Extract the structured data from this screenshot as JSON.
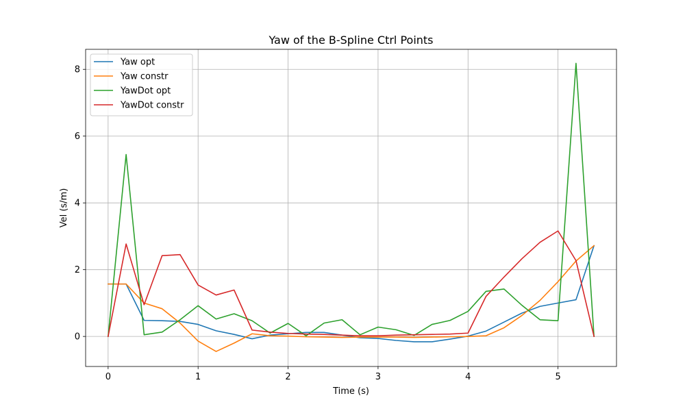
{
  "chart_data": {
    "type": "line",
    "title": "Yaw of the B-Spline Ctrl Points",
    "xlabel": "Time (s)",
    "ylabel": "Vel (s/m)",
    "xlim": [
      -0.25,
      5.65
    ],
    "ylim": [
      -0.9,
      8.6
    ],
    "xticks": [
      0,
      1,
      2,
      3,
      4,
      5
    ],
    "yticks": [
      0,
      2,
      4,
      6,
      8
    ],
    "grid": true,
    "legend_position": "top-left",
    "x": [
      0,
      0.2,
      0.4,
      0.6,
      0.8,
      1.0,
      1.2,
      1.4,
      1.6,
      1.8,
      2.0,
      2.2,
      2.4,
      2.6,
      2.8,
      3.0,
      3.2,
      3.4,
      3.6,
      3.8,
      4.0,
      4.2,
      4.4,
      4.6,
      4.8,
      5.0,
      5.2,
      5.4
    ],
    "series": [
      {
        "name": "Yaw opt",
        "color": "#1f77b4",
        "values": [
          1.57,
          1.57,
          0.48,
          0.47,
          0.45,
          0.36,
          0.17,
          0.06,
          -0.07,
          0.04,
          0.08,
          0.12,
          0.12,
          0.04,
          -0.04,
          -0.06,
          -0.12,
          -0.16,
          -0.16,
          -0.08,
          0.01,
          0.16,
          0.43,
          0.7,
          0.9,
          1.0,
          1.1,
          2.72
        ]
      },
      {
        "name": "Yaw constr",
        "color": "#ff7f0e",
        "values": [
          1.57,
          1.57,
          1.0,
          0.83,
          0.4,
          -0.14,
          -0.45,
          -0.2,
          0.08,
          0.02,
          0.01,
          -0.01,
          -0.02,
          -0.03,
          -0.02,
          -0.02,
          -0.02,
          -0.03,
          -0.02,
          -0.01,
          0.0,
          0.02,
          0.26,
          0.63,
          1.08,
          1.64,
          2.26,
          2.72
        ]
      },
      {
        "name": "YawDot opt",
        "color": "#2ca02c",
        "values": [
          0.0,
          5.45,
          0.05,
          0.13,
          0.5,
          0.92,
          0.52,
          0.68,
          0.47,
          0.1,
          0.39,
          0.02,
          0.4,
          0.5,
          0.05,
          0.28,
          0.2,
          0.03,
          0.36,
          0.48,
          0.75,
          1.35,
          1.42,
          0.93,
          0.5,
          0.47,
          8.18,
          0.0
        ]
      },
      {
        "name": "YawDot constr",
        "color": "#d62728",
        "values": [
          0.0,
          2.77,
          0.95,
          2.42,
          2.45,
          1.54,
          1.24,
          1.39,
          0.19,
          0.13,
          0.09,
          0.07,
          0.06,
          0.04,
          0.02,
          0.02,
          0.04,
          0.05,
          0.06,
          0.07,
          0.1,
          1.2,
          1.78,
          2.33,
          2.82,
          3.16,
          2.27,
          0.0
        ]
      }
    ]
  }
}
